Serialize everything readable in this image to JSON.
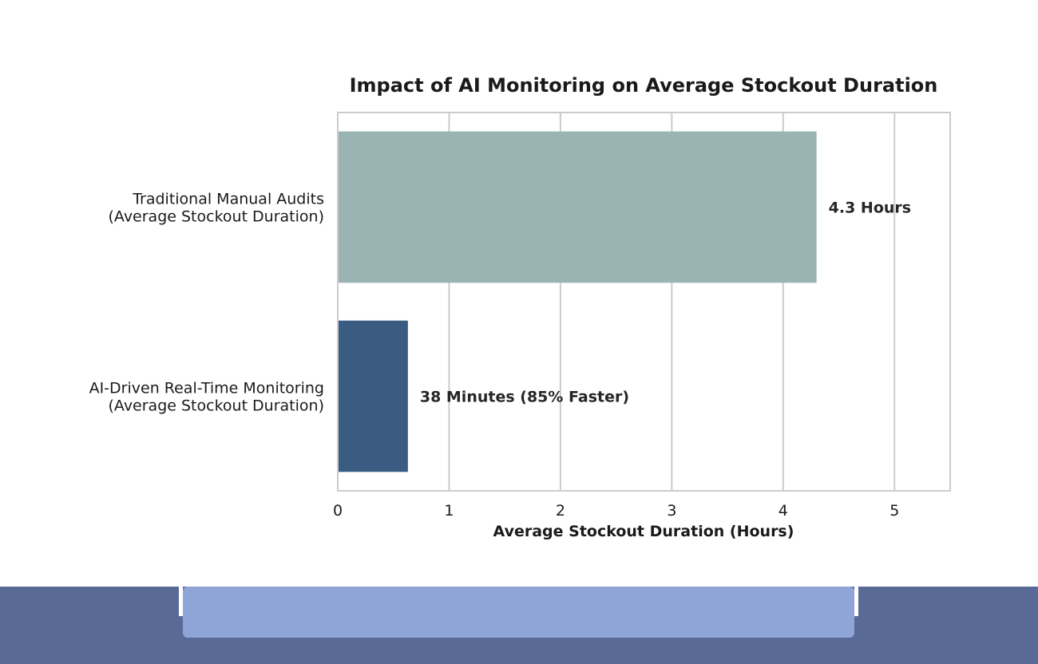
{
  "chart_data": {
    "type": "bar",
    "orientation": "horizontal",
    "title": "Impact of AI Monitoring on Average Stockout Duration",
    "xlabel": "Average Stockout Duration (Hours)",
    "ylabel": "",
    "xlim": [
      0,
      5.5
    ],
    "xticks": [
      "0",
      "1",
      "2",
      "3",
      "4",
      "5"
    ],
    "grid": "vertical",
    "categories": [
      [
        "Traditional Manual Audits",
        "(Average Stockout Duration)"
      ],
      [
        "AI-Driven Real-Time Monitoring",
        "(Average Stockout Duration)"
      ]
    ],
    "values": [
      4.3,
      0.63
    ],
    "data_labels": [
      "4.3 Hours",
      "38 Minutes (85% Faster)"
    ],
    "colors": [
      "#9ab4b3",
      "#3a5b82"
    ]
  },
  "colors": {
    "footer_dark": "#5a6a97",
    "footer_light": "#8fa5d8",
    "gridline": "#cccccc"
  }
}
